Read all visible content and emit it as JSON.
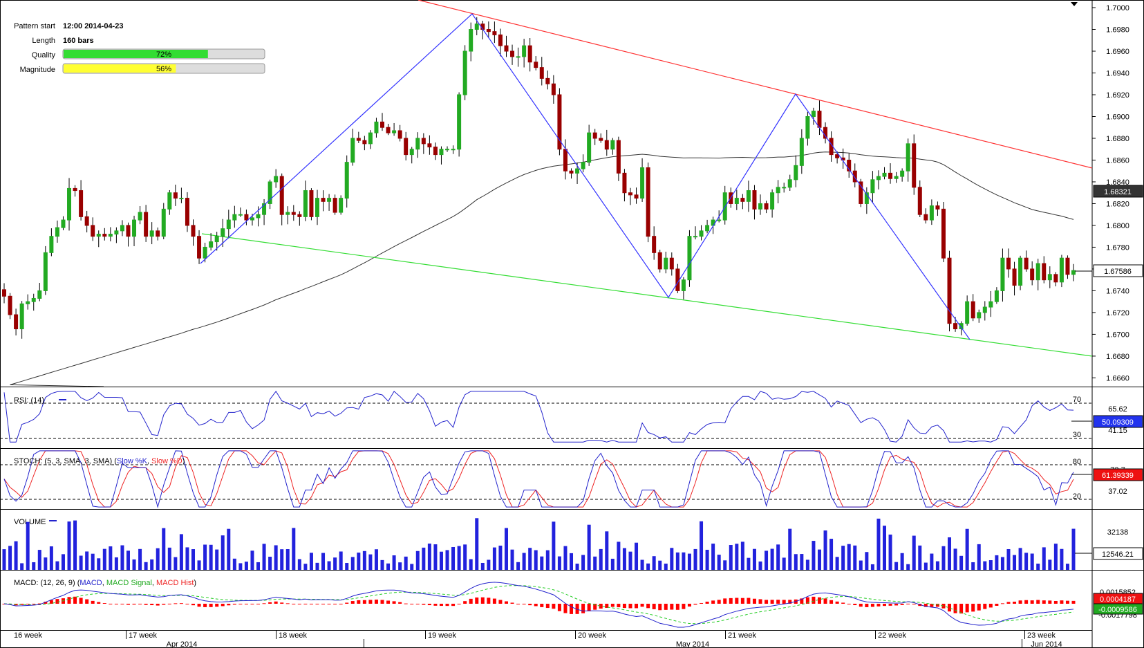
{
  "pattern_info": {
    "start_label": "Pattern start",
    "start_value": "12:00 2014-04-23",
    "length_label": "Length",
    "length_value": "160 bars",
    "quality_label": "Quality",
    "quality_value": "72%",
    "quality_fraction": 0.72,
    "magnitude_label": "Magnitude",
    "magnitude_value": "56%",
    "magnitude_fraction": 0.56
  },
  "panels": {
    "rsi": {
      "label": "RSI: (14)",
      "current": "50.09309",
      "levels": [
        "70",
        "30"
      ],
      "scale_labels": [
        "65.62",
        "41.15"
      ]
    },
    "stoch": {
      "label_prefix": "STOCH: (5, 3, SMA, 3, SMA) (",
      "k_label": "Slow %K",
      "sep": ", ",
      "d_label": "Slow %D",
      "label_suffix": ")",
      "current": "61.39339",
      "levels": [
        "80",
        "20"
      ],
      "scale_labels": [
        "73.7",
        "37.02"
      ]
    },
    "volume": {
      "label": "VOLUME",
      "current": "12546.21",
      "scale_labels": [
        "32138"
      ]
    },
    "macd": {
      "label_prefix": "MACD: (12, 26, 9) (",
      "macd_label": "MACD",
      "sep": ", ",
      "signal_label": "MACD Signal",
      "hist_label": "MACD Hist",
      "label_suffix": ")",
      "current_macd": "0.0004187",
      "current_signal": "-0.0009586",
      "scale_labels": [
        "0.0015852",
        "-0.0017798"
      ]
    }
  },
  "x_axis": {
    "week_labels": [
      "16 week",
      "17 week",
      "18 week",
      "19 week",
      "20 week",
      "21 week",
      "22 week",
      "23 week"
    ],
    "month_labels": [
      "Apr 2014",
      "May 2014",
      "Jun 2014"
    ]
  },
  "colors": {
    "up_candle": "#22aa22",
    "down_candle": "#990000",
    "pattern_line": "#3333ff",
    "resistance": "#ff3333",
    "support": "#33dd33",
    "ma": "#333333",
    "quality_bar": "#33dd33",
    "magnitude_bar": "#ffff33",
    "volume": "#2222dd",
    "macd_hist": "#ff0000"
  },
  "chart_data": {
    "type": "candlestick",
    "instrument_scale": "EUR/CAD-like price scale",
    "y_ticks": [
      "1.7000",
      "1.6980",
      "1.6960",
      "1.6940",
      "1.6920",
      "1.6900",
      "1.6880",
      "1.6860",
      "1.6840",
      "1.6820",
      "1.6800",
      "1.6780",
      "1.6760",
      "1.6740",
      "1.6720",
      "1.6700",
      "1.6680",
      "1.6660"
    ],
    "ylim": [
      1.6652,
      1.7007
    ],
    "current_price": "1.67586",
    "ma_current": "1.68321",
    "close_series": [
      1.6735,
      1.6718,
      1.6705,
      1.6728,
      1.673,
      1.6733,
      1.674,
      1.6775,
      1.679,
      1.6798,
      1.6805,
      1.6834,
      1.6832,
      1.6808,
      1.68,
      1.679,
      1.6792,
      1.679,
      1.6792,
      1.6795,
      1.68,
      1.679,
      1.6805,
      1.6812,
      1.679,
      1.6795,
      1.679,
      1.6815,
      1.683,
      1.6825,
      1.6825,
      1.68,
      1.679,
      1.677,
      1.678,
      1.6785,
      1.679,
      1.6797,
      1.6805,
      1.681,
      1.681,
      1.6805,
      1.6807,
      1.681,
      1.682,
      1.684,
      1.6845,
      1.681,
      1.6812,
      1.681,
      1.6808,
      1.6832,
      1.6808,
      1.6825,
      1.6822,
      1.6825,
      1.6812,
      1.6825,
      1.6858,
      1.688,
      1.6878,
      1.6875,
      1.6885,
      1.6895,
      1.689,
      1.6885,
      1.6887,
      1.688,
      1.6865,
      1.687,
      1.688,
      1.6875,
      1.6872,
      1.6865,
      1.687,
      1.687,
      1.687,
      1.692,
      1.696,
      1.698,
      1.6985,
      1.698,
      1.6978,
      1.6975,
      1.6965,
      1.696,
      1.6955,
      1.6955,
      1.6965,
      1.695,
      1.6945,
      1.6935,
      1.693,
      1.692,
      1.687,
      1.685,
      1.6848,
      1.6852,
      1.6858,
      1.6885,
      1.688,
      1.6878,
      1.687,
      1.6878,
      1.6848,
      1.683,
      1.6828,
      1.6825,
      1.6853,
      1.679,
      1.6775,
      1.676,
      1.677,
      1.676,
      1.674,
      1.675,
      1.679,
      1.679,
      1.6795,
      1.68,
      1.6805,
      1.6805,
      1.683,
      1.682,
      1.6825,
      1.6822,
      1.6832,
      1.6815,
      1.682,
      1.6815,
      1.683,
      1.6835,
      1.6835,
      1.6842,
      1.6855,
      1.688,
      1.69,
      1.6905,
      1.689,
      1.688,
      1.6865,
      1.6862,
      1.686,
      1.685,
      1.684,
      1.682,
      1.683,
      1.6842,
      1.6845,
      1.6848,
      1.6843,
      1.6845,
      1.685,
      1.6875,
      1.6835,
      1.681,
      1.6805,
      1.6818,
      1.6815,
      1.677,
      1.671,
      1.6705,
      1.671,
      1.673,
      1.6715,
      1.672,
      1.6725,
      1.673,
      1.674,
      1.677,
      1.676,
      1.6745,
      1.677,
      1.676,
      1.675,
      1.6765,
      1.675,
      1.6755,
      1.6748,
      1.677,
      1.6755,
      1.67586
    ]
  }
}
